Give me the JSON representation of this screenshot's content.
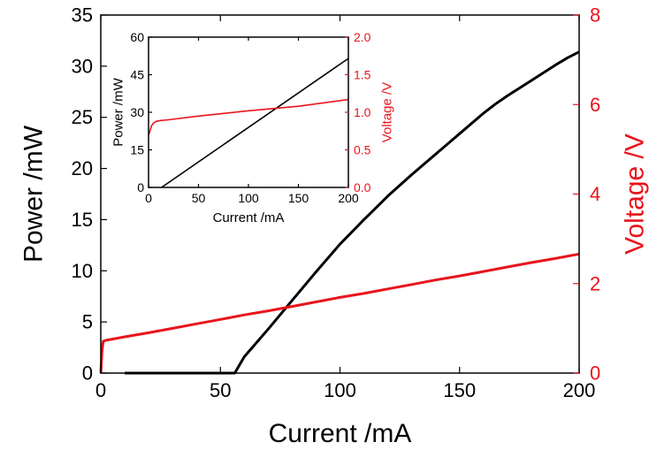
{
  "chart_data": [
    {
      "id": "main",
      "type": "line",
      "xlabel": "Current /mA",
      "ylabel": "Power /mW",
      "y2label": "Voltage /V",
      "xlim": [
        0,
        200
      ],
      "ylim": [
        0,
        35
      ],
      "y2lim": [
        0,
        8
      ],
      "xticks": [
        0,
        50,
        100,
        150,
        200
      ],
      "yticks": [
        0,
        5,
        10,
        15,
        20,
        25,
        30,
        35
      ],
      "y2ticks": [
        0,
        2,
        4,
        6,
        8
      ],
      "grid": false,
      "colors": {
        "power": "#000000",
        "voltage": "#e8141c"
      },
      "series": [
        {
          "axis": "left",
          "x": [
            10,
            56,
            60,
            70,
            80,
            90,
            100,
            110,
            120,
            130,
            140,
            150,
            160,
            165,
            170,
            180,
            190,
            195,
            200
          ],
          "y": [
            0,
            0,
            1.6,
            4.3,
            7.1,
            9.9,
            12.6,
            15.0,
            17.3,
            19.4,
            21.4,
            23.4,
            25.4,
            26.3,
            27.1,
            28.6,
            30.1,
            30.8,
            31.4
          ]
        },
        {
          "axis": "right",
          "x": [
            0,
            0.5,
            1,
            2,
            5,
            10,
            20,
            30,
            40,
            50,
            60,
            70,
            80,
            90,
            100,
            110,
            120,
            130,
            140,
            150,
            160,
            170,
            180,
            190,
            200
          ],
          "y": [
            0,
            0.5,
            0.71,
            0.73,
            0.76,
            0.81,
            0.9,
            1.0,
            1.1,
            1.2,
            1.3,
            1.39,
            1.49,
            1.59,
            1.69,
            1.78,
            1.88,
            1.98,
            2.08,
            2.17,
            2.27,
            2.37,
            2.47,
            2.56,
            2.66
          ]
        }
      ]
    },
    {
      "id": "inset",
      "type": "line",
      "xlabel": "Current /mA",
      "ylabel": "Power /mW",
      "y2label": "Voltage /V",
      "xlim": [
        0,
        200
      ],
      "ylim": [
        0,
        60
      ],
      "y2lim": [
        0,
        2.0
      ],
      "xticks": [
        0,
        50,
        100,
        150,
        200
      ],
      "xtick_labels": [
        "0",
        "50",
        "100",
        "150",
        "200"
      ],
      "yticks": [
        0,
        15,
        30,
        45,
        60
      ],
      "y2ticks": [
        0,
        0.5,
        1.0,
        1.5,
        2.0
      ],
      "y2tick_labels": [
        "0.0",
        "0.5",
        "1.0",
        "1.5",
        "2.0"
      ],
      "grid": false,
      "colors": {
        "power": "#000000",
        "voltage": "#e8141c"
      },
      "series": [
        {
          "axis": "left",
          "x": [
            13,
            200
          ],
          "y": [
            0,
            51.5
          ]
        },
        {
          "axis": "right",
          "x": [
            0,
            1,
            2,
            3,
            5,
            8,
            12,
            20,
            50,
            100,
            150,
            200
          ],
          "y": [
            0.7,
            0.73,
            0.78,
            0.82,
            0.86,
            0.88,
            0.89,
            0.9,
            0.95,
            1.02,
            1.08,
            1.17
          ]
        }
      ]
    }
  ]
}
